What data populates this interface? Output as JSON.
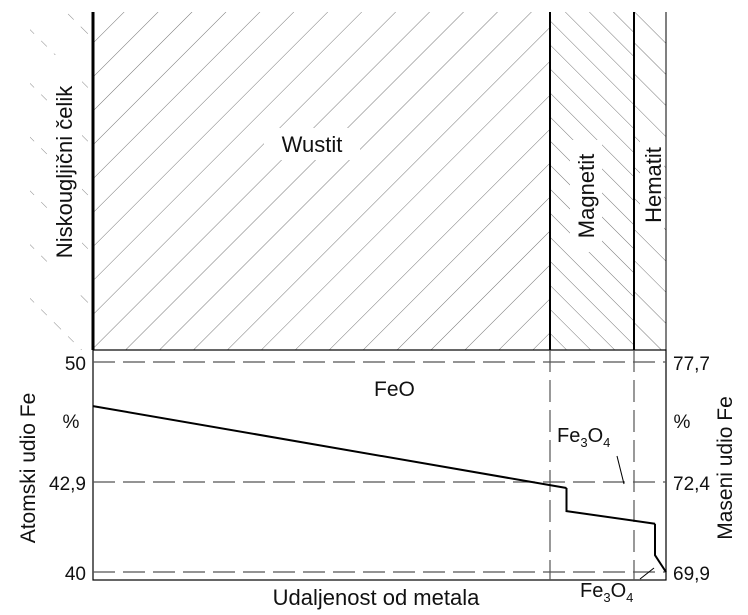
{
  "layers": {
    "steel": "Niskougljični čelik",
    "wustite": "Wustit",
    "magnetite": "Magnetit",
    "hematite": "Hematit"
  },
  "left_axis": {
    "label": "Atomski udio Fe",
    "unit": "%",
    "ticks": [
      "50",
      "42,9",
      "40"
    ]
  },
  "right_axis": {
    "label": "Maseni udio Fe",
    "unit": "%",
    "ticks": [
      "77,7",
      "72,4",
      "69,9"
    ]
  },
  "x_axis": {
    "label": "Udaljenost od metala"
  },
  "annotations": {
    "feo": "FeO",
    "fe3o4_a": {
      "base": "Fe",
      "sub1": "3",
      "mid": "O",
      "sub2": "4"
    },
    "fe3o4_b": {
      "base": "Fe",
      "sub1": "3",
      "mid": "O",
      "sub2": "4"
    }
  },
  "chart_data": {
    "type": "line",
    "xlabel": "Udaljenost od metala",
    "ylabel": "Atomski udio Fe",
    "y2label": "Maseni udio Fe",
    "ylim": [
      40,
      50
    ],
    "reference_levels": {
      "atomic": [
        50,
        42.9,
        40
      ],
      "mass": [
        77.7,
        72.4,
        69.9
      ]
    },
    "series": [
      {
        "x": [
          0.0,
          0.8263
        ],
        "y": [
          47.9,
          44.0
        ]
      },
      {
        "x": [
          0.8263,
          0.8263,
          0.9808
        ],
        "y": [
          44.0,
          42.9,
          42.3
        ]
      },
      {
        "x": [
          0.9808,
          0.9808,
          1.0
        ],
        "y": [
          42.3,
          40.8,
          40.0
        ]
      }
    ]
  }
}
